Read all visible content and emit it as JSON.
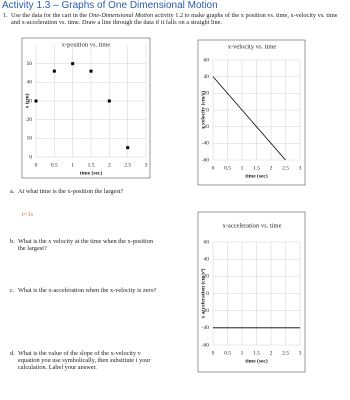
{
  "header": {
    "title": "Activity 1.3 – Graphs of One Dimensional Motion",
    "instructions": [
      "1.",
      "Use the data for the cart in the ",
      "One-Dimensional Motion",
      " activity 1.2 to make graphs of the x position vs. time, x-velocity vs. time and x-acceleration vs. time.  Draw a line through the data if it falls on a straight line."
    ]
  },
  "chart_data": [
    {
      "type": "scatter",
      "title": "x-position vs. time",
      "x_label": "time (sec)",
      "y_label": "x (cm)",
      "x": [
        0,
        0.5,
        1,
        1.5,
        2,
        2.5
      ],
      "values": [
        30,
        46,
        50,
        46,
        30,
        5
      ],
      "color": "#000000",
      "xlim": [
        0,
        3
      ],
      "xticks": [
        0,
        0.5,
        1,
        1.5,
        2,
        2.5,
        3
      ],
      "ylim": [
        0,
        60
      ],
      "yticks": [
        0,
        10,
        20,
        30,
        40,
        50
      ],
      "grid": true
    },
    {
      "type": "line",
      "title": "x-velocity vs. time",
      "x_label": "time (sec)",
      "y_label": "x velocity (cm/s)",
      "x": [
        0,
        2.5
      ],
      "values": [
        40,
        -60
      ],
      "color": "#000000",
      "xlim": [
        0,
        3
      ],
      "xticks": [
        0,
        0.5,
        1,
        1.5,
        2,
        2.5,
        3
      ],
      "ylim": [
        -60,
        60
      ],
      "yticks": [
        -60,
        -40,
        -20,
        0,
        20,
        40,
        60
      ],
      "grid": true
    },
    {
      "type": "line",
      "title": "x-acceleration vs. time",
      "x_label": "time (sec)",
      "y_label": "x acceleration (cm/s²)",
      "x": [
        0,
        3
      ],
      "values": [
        -40,
        -40
      ],
      "color": "#000000",
      "xlim": [
        0,
        3
      ],
      "xticks": [
        0,
        0.5,
        1,
        1.5,
        2,
        2.5,
        3
      ],
      "ylim": [
        -60,
        60
      ],
      "yticks": [
        -60,
        -40,
        -20,
        0,
        20,
        40,
        60
      ],
      "grid": true
    }
  ],
  "questions": [
    {
      "label": "a.",
      "text": "At what time is the x-position the largest?",
      "answer": "t=1s"
    },
    {
      "label": "b.",
      "text": "What is the x velocity at the time when the x-position the largest?"
    },
    {
      "label": "c.",
      "text": "What is the x-acceleration when the x-velocity is zero?"
    },
    {
      "label": "d.",
      "text": "What is the value of the slope of the x-velocity v equation you use symbolically, then substitute i your calculation. Label your answer."
    }
  ]
}
